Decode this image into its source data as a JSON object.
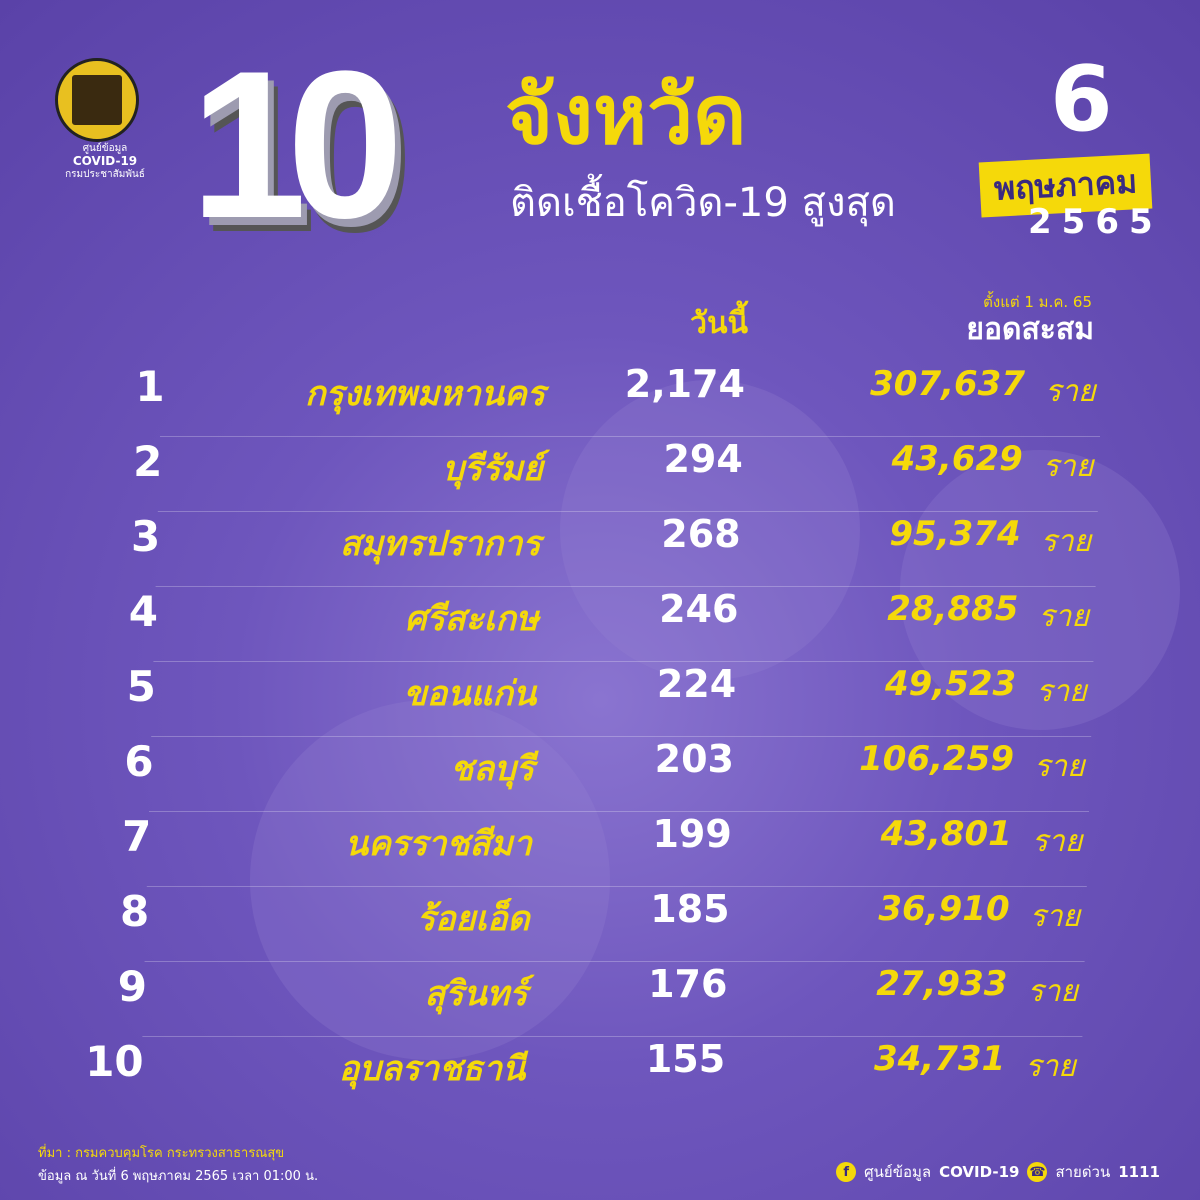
{
  "logo": {
    "line1": "ศูนย์ข้อมูล",
    "line2": "COVID-19",
    "line3": "กรมประชาสัมพันธ์"
  },
  "header": {
    "number": "10",
    "title": "จังหวัด",
    "subtitle": "ติดเชื้อโควิด-19 สูงสุด",
    "day": "6",
    "month": "พฤษภาคม",
    "year": "2565"
  },
  "columns": {
    "today": "วันนี้",
    "since": "ตั้งแต่ 1 ม.ค. 65",
    "cumulative": "ยอดสะสม"
  },
  "unit": "ราย",
  "rows": [
    {
      "rank": "1",
      "province": "กรุงเทพมหานคร",
      "today": "2,174",
      "cumulative": "307,637"
    },
    {
      "rank": "2",
      "province": "บุรีรัมย์",
      "today": "294",
      "cumulative": "43,629"
    },
    {
      "rank": "3",
      "province": "สมุทรปราการ",
      "today": "268",
      "cumulative": "95,374"
    },
    {
      "rank": "4",
      "province": "ศรีสะเกษ",
      "today": "246",
      "cumulative": "28,885"
    },
    {
      "rank": "5",
      "province": "ขอนแก่น",
      "today": "224",
      "cumulative": "49,523"
    },
    {
      "rank": "6",
      "province": "ชลบุรี",
      "today": "203",
      "cumulative": "106,259"
    },
    {
      "rank": "7",
      "province": "นครราชสีมา",
      "today": "199",
      "cumulative": "43,801"
    },
    {
      "rank": "8",
      "province": "ร้อยเอ็ด",
      "today": "185",
      "cumulative": "36,910"
    },
    {
      "rank": "9",
      "province": "สุรินทร์",
      "today": "176",
      "cumulative": "27,933"
    },
    {
      "rank": "10",
      "province": "อุบลราชธานี",
      "today": "155",
      "cumulative": "34,731"
    }
  ],
  "footer": {
    "source": "ที่มา : กรมควบคุมโรค กระทรวงสาธารณสุข",
    "as_of": "ข้อมูล ณ วันที่ 6 พฤษภาคม 2565 เวลา 01:00 น.",
    "facebook_icon": "facebook-icon",
    "facebook_label_th": "ศูนย์ข้อมูล",
    "facebook_label_en": "COVID-19",
    "phone_icon": "phone-icon",
    "hotline_label": "สายด่วน",
    "hotline": "1111"
  },
  "colors": {
    "background": "#6e56bd",
    "accent": "#f5d90a"
  }
}
